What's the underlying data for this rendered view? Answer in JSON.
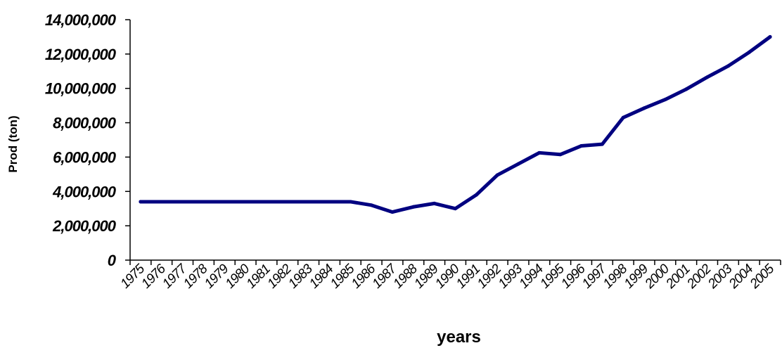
{
  "chart_data": {
    "type": "line",
    "title": "",
    "xlabel": "years",
    "ylabel": "Prod (ton)",
    "ylim": [
      0,
      14000000
    ],
    "yticks": [
      0,
      2000000,
      4000000,
      6000000,
      8000000,
      10000000,
      12000000,
      14000000
    ],
    "ytick_labels": [
      "0",
      "2,000,000",
      "4,000,000",
      "6,000,000",
      "8,000,000",
      "10,000,000",
      "12,000,000",
      "14,000,000"
    ],
    "categories": [
      "1975",
      "1976",
      "1977",
      "1978",
      "1979",
      "1980",
      "1981",
      "1982",
      "1983",
      "1984",
      "1985",
      "1986",
      "1987",
      "1988",
      "1989",
      "1990",
      "1991",
      "1992",
      "1993",
      "1994",
      "1995",
      "1996",
      "1997",
      "1998",
      "1999",
      "2000",
      "2001",
      "2002",
      "2003",
      "2004",
      "2005"
    ],
    "series": [
      {
        "color": "#000080",
        "values": [
          3400000,
          3400000,
          3400000,
          3400000,
          3400000,
          3400000,
          3400000,
          3400000,
          3400000,
          3400000,
          3400000,
          3200000,
          2800000,
          3100000,
          3300000,
          3000000,
          3800000,
          4950000,
          5600000,
          6250000,
          6150000,
          6650000,
          6750000,
          8300000,
          8850000,
          9350000,
          9950000,
          10650000,
          11300000,
          12100000,
          13000000
        ]
      }
    ],
    "grid": false,
    "legend": "none"
  }
}
